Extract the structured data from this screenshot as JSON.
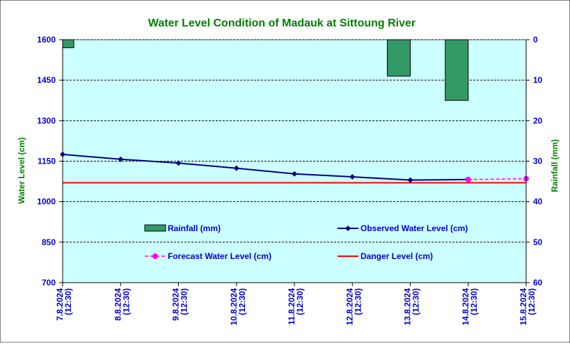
{
  "colors": {
    "title": "#008000",
    "axis_text": "#0000cc",
    "plot_bg": "#ccffff",
    "rainfall": "#339966",
    "observed": "#000080",
    "forecast": "#ff00ff",
    "danger": "#ff0000"
  },
  "chart_data": {
    "type": "line",
    "title": "Water Level Condition of Madauk at Sittoung River",
    "ylabel": "Water Level (cm)",
    "y2label": "Rainfall (mm)",
    "ylim": [
      700,
      1600
    ],
    "y2lim": [
      0,
      60
    ],
    "y2_inverted": true,
    "grid": true,
    "categories": [
      "7.8.2024",
      "8.8.2024",
      "9.8.2024",
      "10.8.2024",
      "11.8.2024",
      "12.8.2024",
      "13.8.2024",
      "14.8.2024",
      "15.8.2024"
    ],
    "category_time": "(12:30)",
    "yticks": [
      "1600",
      "1450",
      "1300",
      "1150",
      "1000",
      "850",
      "700"
    ],
    "y2ticks": [
      "0",
      "10",
      "20",
      "30",
      "40",
      "50",
      "60"
    ],
    "series": [
      {
        "name": "Rainfall (mm)",
        "type": "bar",
        "axis": "right",
        "values": [
          2,
          0,
          0,
          0,
          0,
          0,
          9,
          15,
          null
        ]
      },
      {
        "name": "Observed Water Level (cm)",
        "type": "line",
        "values": [
          1175,
          1157,
          1143,
          1124,
          1103,
          1092,
          1080,
          1082,
          null
        ]
      },
      {
        "name": "Forecast Water Level (cm)",
        "type": "line",
        "dashed": true,
        "values": [
          null,
          null,
          null,
          null,
          null,
          null,
          null,
          1082,
          1085
        ]
      },
      {
        "name": "Danger Level (cm)",
        "type": "line",
        "constant": 1070
      }
    ]
  }
}
